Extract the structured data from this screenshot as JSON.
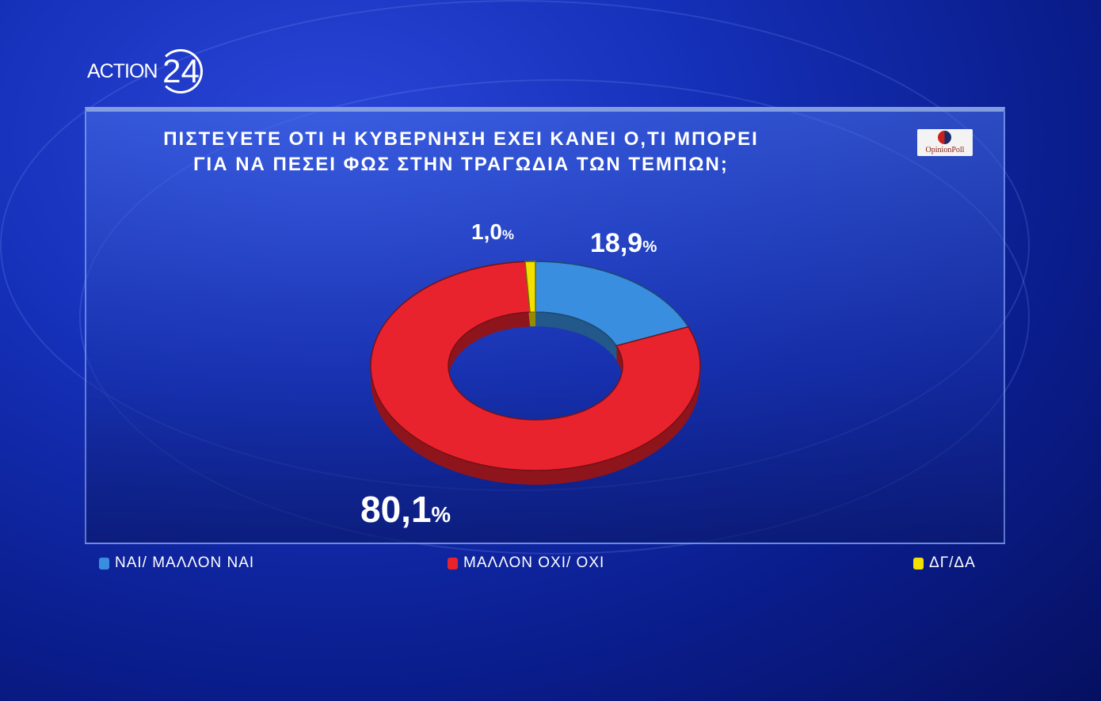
{
  "brand": {
    "logo_text": "ACTION",
    "logo_number": "24",
    "pollster": "OpinionPoll"
  },
  "chart_data": {
    "type": "pie",
    "donut": true,
    "title": "ΠΙΣΤΕΥΕΤΕ ΟΤΙ Η ΚΥΒΕΡΝΗΣΗ ΕΧΕΙ ΚΑΝΕΙ Ο,ΤΙ ΜΠΟΡΕΙ ΓΙΑ ΝΑ ΠΕΣΕΙ ΦΩΣ ΣΤΗΝ ΤΡΑΓΩΔΙΑ ΤΩΝ ΤΕΜΠΩΝ;",
    "title_lines": [
      "ΠΙΣΤΕΥΕΤΕ ΟΤΙ Η ΚΥΒΕΡΝΗΣΗ ΕΧΕΙ ΚΑΝΕΙ Ο,ΤΙ ΜΠΟΡΕΙ",
      "ΓΙΑ ΝΑ ΠΕΣΕΙ ΦΩΣ ΣΤΗΝ ΤΡΑΓΩΔΙΑ ΤΩΝ ΤΕΜΠΩΝ;"
    ],
    "slices": [
      {
        "label": "ΝΑΙ/ ΜΑΛΛΟΝ ΝΑΙ",
        "value": 18.9,
        "value_text": "18,9",
        "color": "#3a8ee0"
      },
      {
        "label": "ΜΑΛΛΟΝ ΟΧΙ/ ΟΧΙ",
        "value": 80.1,
        "value_text": "80,1",
        "color": "#e8232e"
      },
      {
        "label": "ΔΓ/ΔΑ",
        "value": 1.0,
        "value_text": "1,0",
        "color": "#f2e000"
      }
    ],
    "unit": "%",
    "legend": "bottom"
  }
}
